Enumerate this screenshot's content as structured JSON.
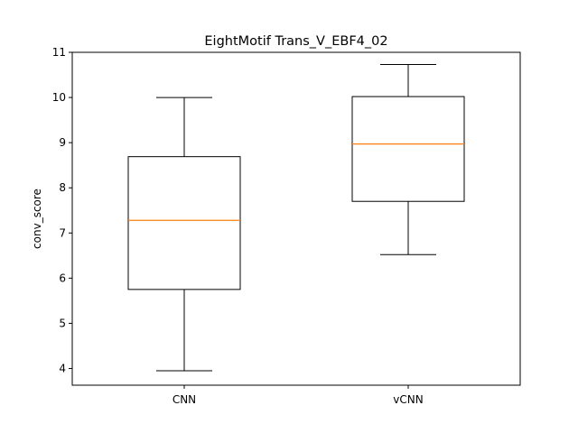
{
  "chart_data": {
    "type": "box",
    "title": "EightMotif Trans_V_EBF4_02",
    "xlabel": "",
    "ylabel": "conv_score",
    "ylim": [
      3.63,
      11.0
    ],
    "yticks": [
      4,
      5,
      6,
      7,
      8,
      9,
      10,
      11
    ],
    "grid": false,
    "categories": [
      "CNN",
      "vCNN"
    ],
    "series": [
      {
        "category": "CNN",
        "whislo": 3.95,
        "q1": 5.75,
        "med": 7.28,
        "q3": 8.69,
        "whishi": 10.0
      },
      {
        "category": "vCNN",
        "whislo": 6.52,
        "q1": 7.7,
        "med": 8.97,
        "q3": 10.02,
        "whishi": 10.73
      }
    ],
    "colors": {
      "box": "#000000",
      "median": "#ff7f0e"
    }
  }
}
